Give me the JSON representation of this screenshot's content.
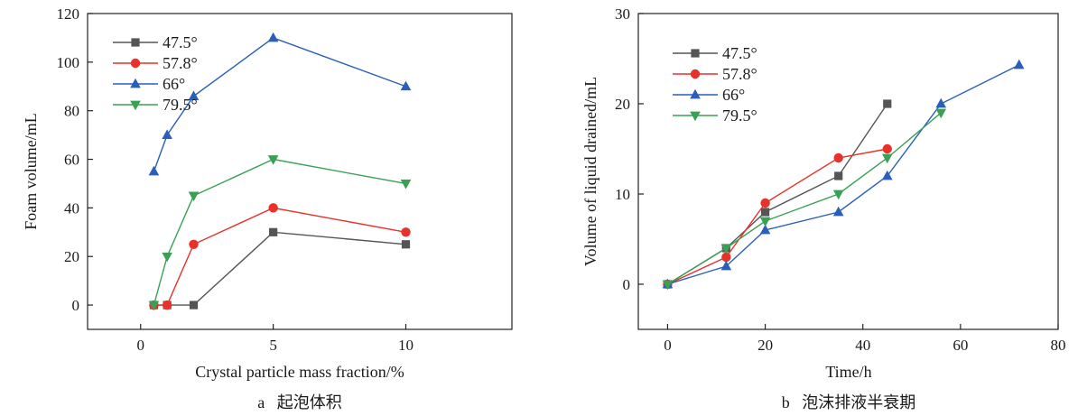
{
  "charts": [
    {
      "id": "a",
      "caption": "a   起泡体积",
      "chart_data": {
        "type": "line",
        "xlabel": "Crystal particle mass fraction/%",
        "ylabel": "Foam volume/mL",
        "xlim": [
          -2,
          14
        ],
        "ylim": [
          -10,
          120
        ],
        "xticks": [
          0,
          5,
          10
        ],
        "yticks": [
          0,
          20,
          40,
          60,
          80,
          100,
          120
        ],
        "legend_position": "top-left",
        "series": [
          {
            "name": "47.5°",
            "color": "#555555",
            "marker": "square",
            "x": [
              0.5,
              1,
              2,
              5,
              10
            ],
            "y": [
              0,
              0,
              0,
              30,
              25
            ]
          },
          {
            "name": "57.8°",
            "color": "#e8312a",
            "marker": "circle",
            "x": [
              0.5,
              1,
              2,
              5,
              10
            ],
            "y": [
              0,
              0,
              25,
              40,
              30
            ]
          },
          {
            "name": "66°",
            "color": "#2a5fb8",
            "marker": "triangle-up",
            "x": [
              0.5,
              1,
              2,
              5,
              10
            ],
            "y": [
              55,
              70,
              86,
              110,
              90
            ]
          },
          {
            "name": "79.5°",
            "color": "#3aa055",
            "marker": "triangle-down",
            "x": [
              0.5,
              1,
              2,
              5,
              10
            ],
            "y": [
              0,
              20,
              45,
              60,
              50
            ]
          }
        ]
      }
    },
    {
      "id": "b",
      "caption": "b   泡沫排液半衰期",
      "chart_data": {
        "type": "line",
        "xlabel": "Time/h",
        "ylabel": "Volume of liquid drained/mL",
        "xlim": [
          -6,
          80
        ],
        "ylim": [
          -5,
          30
        ],
        "xticks": [
          0,
          20,
          40,
          60,
          80
        ],
        "yticks": [
          0,
          10,
          20,
          30
        ],
        "legend_position": "top-left",
        "series": [
          {
            "name": "47.5°",
            "color": "#555555",
            "marker": "square",
            "x": [
              0,
              12,
              20,
              35,
              45
            ],
            "y": [
              0,
              4,
              8,
              12,
              20
            ]
          },
          {
            "name": "57.8°",
            "color": "#e8312a",
            "marker": "circle",
            "x": [
              0,
              12,
              20,
              35,
              45
            ],
            "y": [
              0,
              3,
              9,
              14,
              15
            ]
          },
          {
            "name": "66°",
            "color": "#2a5fb8",
            "marker": "triangle-up",
            "x": [
              0,
              12,
              20,
              35,
              45,
              56,
              72
            ],
            "y": [
              0,
              2,
              6,
              8,
              12,
              20,
              24.3
            ]
          },
          {
            "name": "79.5°",
            "color": "#3aa055",
            "marker": "triangle-down",
            "x": [
              0,
              12,
              20,
              35,
              45,
              56
            ],
            "y": [
              0,
              4,
              7,
              10,
              14,
              19
            ]
          }
        ]
      }
    }
  ]
}
